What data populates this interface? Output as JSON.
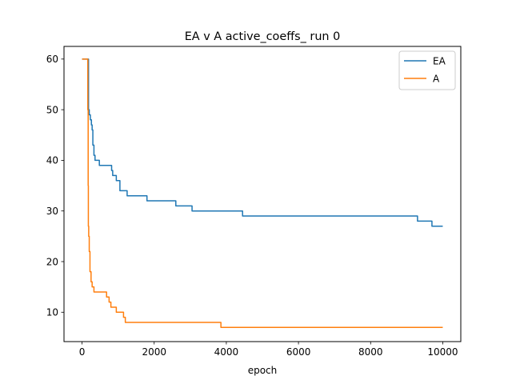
{
  "chart_data": {
    "type": "line",
    "title": "EA v A active_coeffs_ run 0",
    "xlabel": "epoch",
    "ylabel": "",
    "xlim": [
      -500,
      10500
    ],
    "ylim": [
      4.2,
      62.5
    ],
    "xticks": [
      0,
      2000,
      4000,
      6000,
      8000,
      10000
    ],
    "yticks": [
      10,
      20,
      30,
      40,
      50,
      60
    ],
    "grid": false,
    "legend": "upper right",
    "series": [
      {
        "name": "EA",
        "color": "#1f77b4",
        "step": true,
        "x": [
          0,
          150,
          180,
          200,
          230,
          260,
          280,
          300,
          330,
          360,
          430,
          480,
          520,
          820,
          850,
          950,
          1050,
          1150,
          1250,
          1800,
          2600,
          3050,
          4450,
          9300,
          9700,
          10000
        ],
        "y": [
          60,
          60,
          50,
          49,
          48,
          47,
          46,
          43,
          41,
          40,
          40,
          39,
          39,
          38,
          37,
          36,
          34,
          34,
          33,
          32,
          31,
          30,
          29,
          28,
          27,
          27
        ]
      },
      {
        "name": "A",
        "color": "#ff7f0e",
        "step": true,
        "x": [
          0,
          150,
          160,
          170,
          175,
          185,
          200,
          220,
          250,
          280,
          330,
          380,
          420,
          680,
          750,
          800,
          850,
          950,
          1050,
          1150,
          1200,
          1250,
          3850,
          10000
        ],
        "y": [
          60,
          60,
          50,
          35,
          27,
          25,
          22,
          18,
          16,
          15,
          14,
          14,
          14,
          13,
          12,
          11,
          11,
          10,
          10,
          9,
          8,
          8,
          7,
          7
        ]
      }
    ]
  }
}
